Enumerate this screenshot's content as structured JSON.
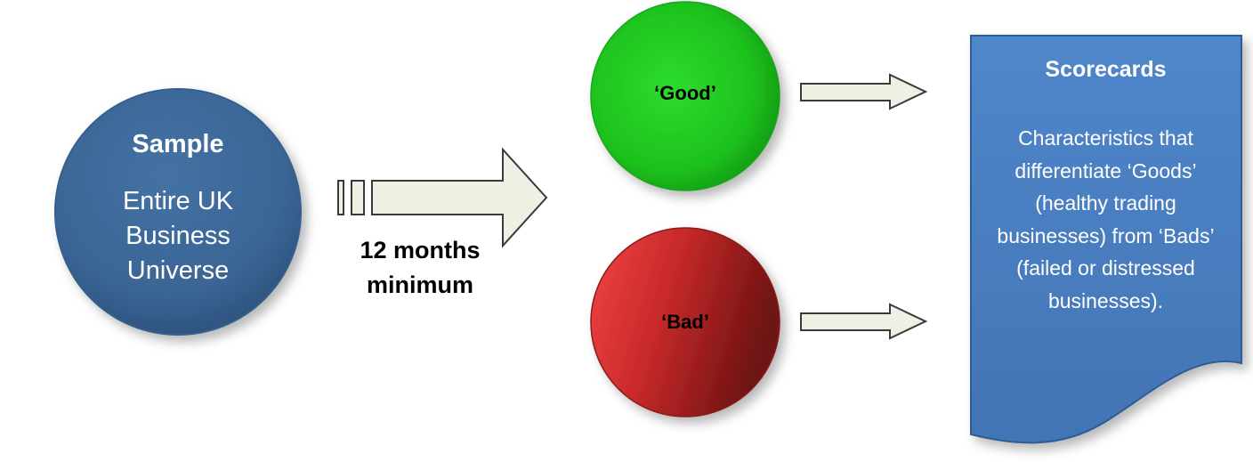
{
  "sample": {
    "title": "Sample",
    "body": "Entire UK Business Universe"
  },
  "main_arrow": {
    "label": "12 months minimum"
  },
  "good": {
    "label": "‘Good’",
    "color": "#22cc22"
  },
  "bad": {
    "label": "‘Bad’",
    "color": "#cc2222"
  },
  "scorecards": {
    "title": "Scorecards",
    "body": "Characteristics that differentiate ‘Goods’ (healthy trading businesses) from ‘Bads’ (failed or distressed businesses).",
    "color": "#4a7ec0"
  },
  "colors": {
    "sample_circle": "#3b6696",
    "arrow_fill": "#efefe3"
  }
}
